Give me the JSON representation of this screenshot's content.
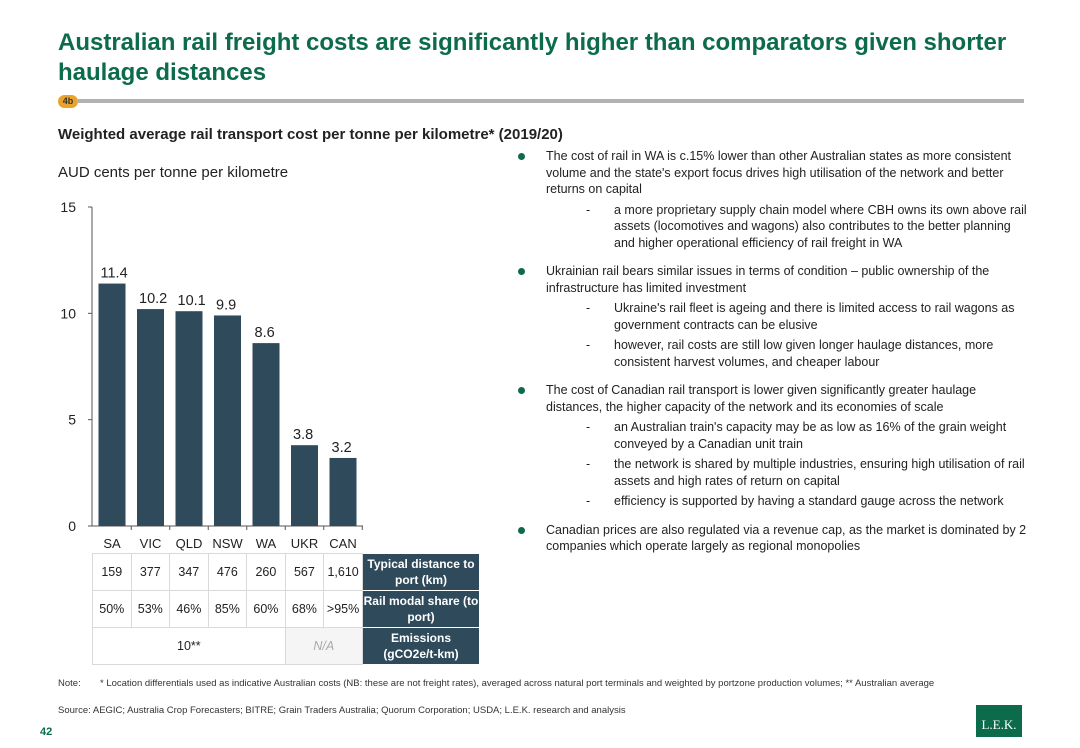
{
  "page": {
    "title": "Australian rail freight costs are significantly higher than comparators given shorter haulage distances",
    "section_badge": "4b",
    "page_number": "42",
    "logo_text": "L.E.K."
  },
  "chart_data": {
    "type": "bar",
    "title": "Weighted average rail transport cost per tonne per kilometre* (2019/20)",
    "subtitle": "AUD cents per tonne per kilometre",
    "categories": [
      "SA",
      "VIC",
      "QLD",
      "NSW",
      "WA",
      "UKR",
      "CAN"
    ],
    "values": [
      11.4,
      10.2,
      10.1,
      9.9,
      8.6,
      3.8,
      3.2
    ],
    "value_labels": [
      "11.4",
      "10.2",
      "10.1",
      "9.9",
      "8.6",
      "3.8",
      "3.2"
    ],
    "ylim": [
      0,
      15
    ],
    "yticks": [
      0,
      5,
      10,
      15
    ],
    "grid": false,
    "bar_color": "#2f4a5b"
  },
  "table": {
    "rows": [
      {
        "label": "Typical distance to port (km)",
        "values": [
          "159",
          "377",
          "347",
          "476",
          "260",
          "567",
          "1,610"
        ]
      },
      {
        "label": "Rail modal share (to port)",
        "values": [
          "50%",
          "53%",
          "46%",
          "85%",
          "60%",
          "68%",
          ">95%"
        ]
      }
    ],
    "emissions": {
      "label": "Emissions (gCO2e/t-km)",
      "australia_value": "10**",
      "comparator_value": "N/A"
    }
  },
  "bullets": [
    {
      "text": "The cost of rail in WA is c.15% lower than other Australian states as more consistent volume and the state's export focus drives high utilisation of the network and better returns on capital",
      "subs": [
        "a more proprietary supply chain model where CBH owns its own above rail assets (locomotives and wagons) also contributes to the better planning and higher operational efficiency of rail freight in WA"
      ]
    },
    {
      "text": "Ukrainian rail bears similar issues in terms of condition – public ownership of the infrastructure has limited investment",
      "subs": [
        "Ukraine's rail fleet is ageing and there is limited access to rail wagons as government contracts can be elusive",
        "however, rail costs are still low given longer haulage distances, more consistent harvest volumes, and cheaper labour"
      ]
    },
    {
      "text": "The cost of Canadian rail transport is lower given significantly greater haulage distances, the higher capacity of the network and its economies of scale",
      "subs": [
        "an Australian train's capacity may be as low as 16% of the grain weight conveyed by a Canadian unit train",
        "the network is shared by multiple industries, ensuring high utilisation of rail assets and high rates of return on capital",
        "efficiency is supported by having a standard gauge across the network"
      ]
    },
    {
      "text": "Canadian prices are also regulated via a revenue cap, as the market is dominated by 2 companies which operate largely as regional monopolies",
      "subs": []
    }
  ],
  "footer": {
    "note_label": "Note:",
    "note_text": "* Location differentials used as indicative Australian costs (NB: these are not freight rates), averaged across natural port terminals and weighted by portzone production volumes; ** Australian average",
    "source_text": "Source: AEGIC; Australia Crop Forecasters; BITRE; Grain Traders Australia; Quorum Corporation; USDA; L.E.K. research and analysis"
  }
}
